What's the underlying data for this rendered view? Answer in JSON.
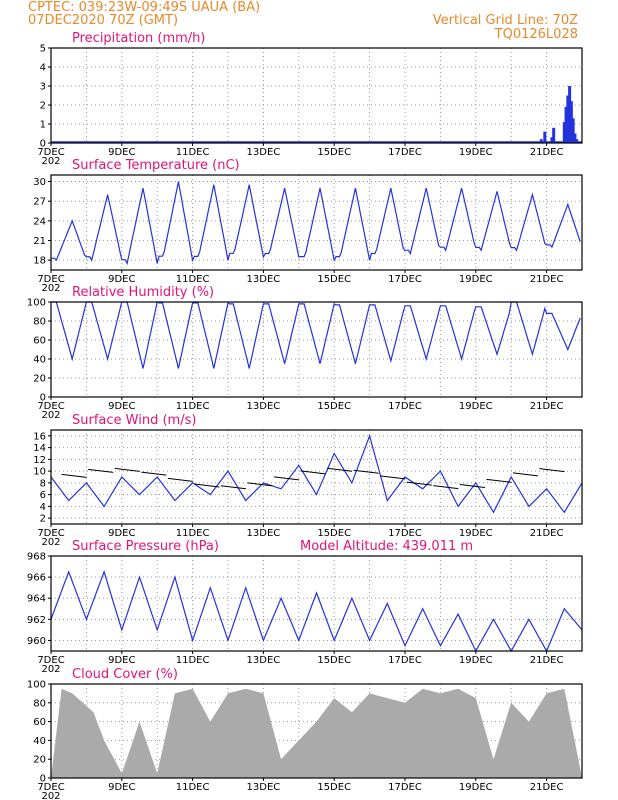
{
  "header": {
    "left_line1": "CPTEC:   039:23W-09:49S   UAUA (BA)",
    "left_line2": "07DEC2020 70Z (GMT)",
    "right_line1": "Vertical Grid Line: 70Z",
    "right_line2": "TQ0126L028"
  },
  "colors": {
    "header": "#e8892a",
    "title": "#e0137a",
    "line": "#2233dd",
    "cloud": "#aaaaaa",
    "grid": "#999999"
  },
  "x_axis": {
    "labels": [
      "7DEC",
      "9DEC",
      "11DEC",
      "13DEC",
      "15DEC",
      "17DEC",
      "19DEC",
      "21DEC"
    ],
    "label_days": [
      0,
      2,
      4,
      6,
      8,
      10,
      12,
      14
    ],
    "days_span": 15,
    "year_fragment": "202"
  },
  "panels": [
    {
      "key": "precip",
      "title": "Precipitation (mm/h)",
      "type": "bar",
      "ylim": [
        0,
        5
      ],
      "yticks": [
        0,
        1,
        2,
        3,
        4,
        5
      ]
    },
    {
      "key": "temp",
      "title": "Surface Temperature (nC)",
      "type": "line",
      "ylim": [
        16.5,
        31
      ],
      "yticks": [
        18,
        21,
        24,
        27,
        30
      ]
    },
    {
      "key": "rh",
      "title": "Relative Humidity (%)",
      "type": "line",
      "ylim": [
        0,
        100
      ],
      "yticks": [
        0,
        20,
        40,
        60,
        80,
        100
      ]
    },
    {
      "key": "wind",
      "title": "Surface Wind (m/s)",
      "type": "line",
      "ylim": [
        1,
        17
      ],
      "yticks": [
        2,
        4,
        6,
        8,
        10,
        12,
        14,
        16
      ]
    },
    {
      "key": "pres",
      "title": "Surface Pressure (hPa)",
      "extra": "Model Altitude: 439.011 m",
      "type": "line",
      "ylim": [
        959,
        968
      ],
      "yticks": [
        960,
        962,
        964,
        966,
        968
      ]
    },
    {
      "key": "cloud",
      "title": "Cloud Cover (%)",
      "type": "area",
      "ylim": [
        0,
        100
      ],
      "yticks": [
        0,
        20,
        40,
        60,
        80,
        100
      ]
    }
  ],
  "chart_data": [
    {
      "type": "bar",
      "title": "Precipitation (mm/h)",
      "x": [
        13.85,
        13.95,
        14.15,
        14.2,
        14.5,
        14.55,
        14.6,
        14.65,
        14.7,
        14.75,
        14.8,
        14.85
      ],
      "values": [
        0.2,
        0.6,
        0.3,
        0.8,
        1.1,
        1.9,
        2.5,
        3.0,
        2.2,
        1.3,
        0.5,
        0.2
      ],
      "ylim": [
        0,
        5
      ],
      "xlabel": "day offset from 7DEC"
    },
    {
      "type": "line",
      "title": "Surface Temperature (nC)",
      "min_day": [
        0.1,
        1.1,
        2.1,
        3.1,
        4.1,
        5.1,
        6.1,
        7.1,
        8.1,
        9.1,
        10.1,
        11.1,
        12.1,
        13.1,
        14.1
      ],
      "tmin": [
        18,
        18,
        17.5,
        18,
        18,
        18.5,
        18.5,
        18,
        18,
        18.5,
        19,
        19.5,
        19.5,
        19.5,
        20
      ],
      "tmax": [
        24,
        28,
        29,
        30,
        29.5,
        29.5,
        29,
        29,
        29,
        29,
        29,
        29,
        28.5,
        28,
        26.5
      ],
      "ylim": [
        16.5,
        31
      ]
    },
    {
      "type": "line",
      "title": "Relative Humidity (%)",
      "rh_max": [
        100,
        100,
        100,
        99,
        99,
        98,
        98,
        98,
        97,
        97,
        96,
        96,
        95,
        100,
        88
      ],
      "rh_min": [
        40,
        40,
        30,
        30,
        30,
        30,
        35,
        35,
        35,
        38,
        40,
        40,
        45,
        45,
        50
      ],
      "ylim": [
        0,
        100
      ]
    },
    {
      "type": "line",
      "title": "Surface Wind (m/s)",
      "x": [
        0,
        0.5,
        1.0,
        1.5,
        2.0,
        2.5,
        3.0,
        3.5,
        4.0,
        4.5,
        5.0,
        5.5,
        6.0,
        6.5,
        7.0,
        7.5,
        8.0,
        8.5,
        9.0,
        9.5,
        10.0,
        10.5,
        11.0,
        11.5,
        12.0,
        12.5,
        13.0,
        13.5,
        14.0,
        14.5,
        15.0
      ],
      "y": [
        9,
        5,
        8,
        4,
        9,
        6,
        9,
        5,
        8,
        6,
        10,
        5,
        8,
        7,
        11,
        6,
        13,
        8,
        16,
        5,
        9,
        7,
        10,
        4,
        8,
        3,
        9,
        4,
        7,
        3,
        8
      ],
      "ylim": [
        1,
        17
      ]
    },
    {
      "type": "line",
      "title": "Surface Pressure (hPa)",
      "x": [
        0,
        0.5,
        1.0,
        1.5,
        2.0,
        2.5,
        3.0,
        3.5,
        4.0,
        4.5,
        5.0,
        5.5,
        6.0,
        6.5,
        7.0,
        7.5,
        8.0,
        8.5,
        9.0,
        9.5,
        10.0,
        10.5,
        11.0,
        11.5,
        12.0,
        12.5,
        13.0,
        13.5,
        14.0,
        14.5,
        15.0
      ],
      "y": [
        962,
        966.5,
        962,
        966.5,
        961,
        966,
        961,
        966,
        960,
        965,
        960,
        965,
        960,
        964,
        960,
        964.5,
        960,
        964,
        960,
        963.5,
        959.5,
        963,
        959.5,
        962.5,
        959,
        962,
        959,
        962,
        959,
        963,
        961
      ],
      "ylim": [
        959,
        968
      ]
    },
    {
      "type": "area",
      "title": "Cloud Cover (%)",
      "x": [
        0,
        0.3,
        0.6,
        0.9,
        1.2,
        1.5,
        2.0,
        2.5,
        3.0,
        3.5,
        4.0,
        4.5,
        5.0,
        5.5,
        6.0,
        6.5,
        7.0,
        7.5,
        8.0,
        8.5,
        9.0,
        9.5,
        10.0,
        10.5,
        11.0,
        11.5,
        12.0,
        12.5,
        13.0,
        13.5,
        14.0,
        14.5,
        15.0
      ],
      "y": [
        0,
        95,
        90,
        80,
        70,
        40,
        5,
        60,
        5,
        90,
        95,
        60,
        90,
        95,
        90,
        20,
        40,
        60,
        85,
        70,
        90,
        85,
        80,
        95,
        90,
        95,
        85,
        20,
        80,
        60,
        90,
        95,
        0
      ],
      "ylim": [
        0,
        100
      ]
    }
  ]
}
